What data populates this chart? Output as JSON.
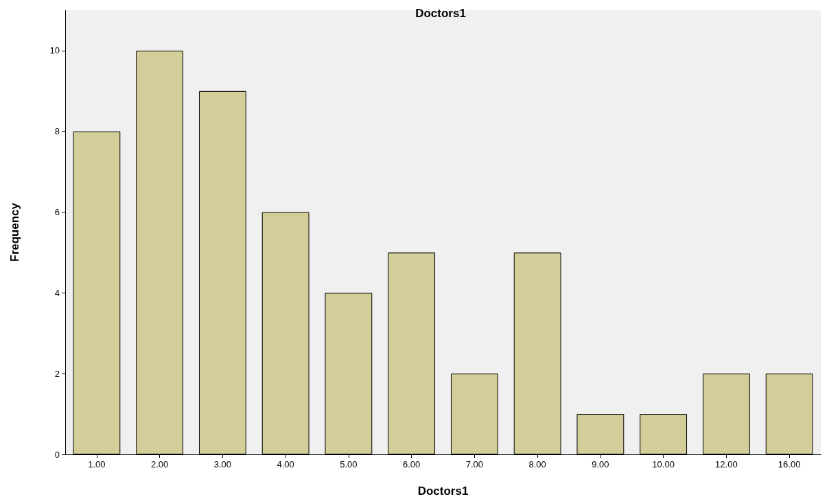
{
  "chart_data": {
    "type": "bar",
    "title": "Doctors1",
    "xlabel": "Doctors1",
    "ylabel": "Frequency",
    "categories": [
      "1.00",
      "2.00",
      "3.00",
      "4.00",
      "5.00",
      "6.00",
      "7.00",
      "8.00",
      "9.00",
      "10.00",
      "12.00",
      "16.00"
    ],
    "values": [
      8,
      10,
      9,
      6,
      4,
      5,
      2,
      5,
      1,
      1,
      2,
      2
    ],
    "color": "#d3ce99",
    "ylim": [
      0,
      11
    ],
    "yticks": [
      0,
      2,
      4,
      6,
      8,
      10
    ],
    "grid": false
  }
}
